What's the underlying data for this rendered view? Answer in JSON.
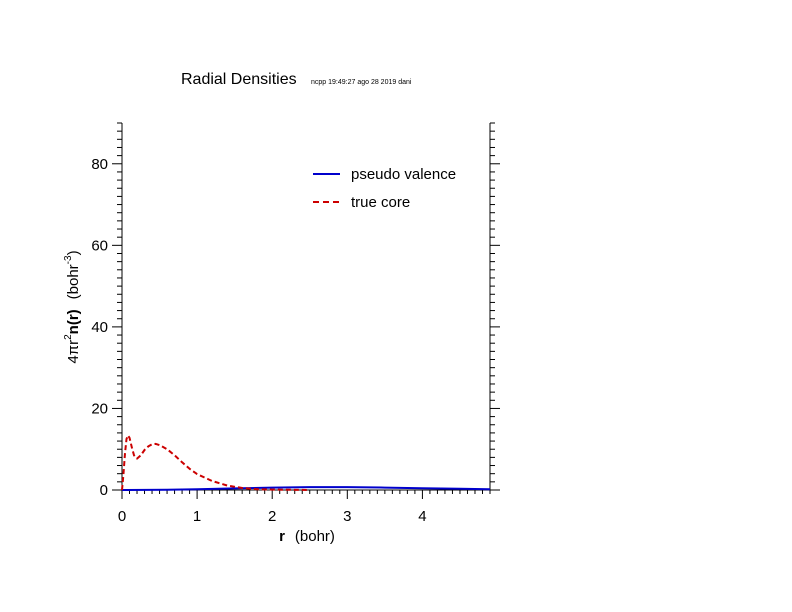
{
  "chart_data": {
    "type": "line",
    "title": "Radial Densities",
    "subtitle": "ncpp 19:49:27 ago 28 2019 dani",
    "xlabel": {
      "bold": "r",
      "units": "(bohr)"
    },
    "ylabel": {
      "prefix": "4πr",
      "prefix_sup": "2",
      "bold": "n(r)",
      "units": "(bohr",
      "units_sup": "-3",
      "units_close": ")"
    },
    "xlim": [
      0,
      4.9
    ],
    "ylim": [
      0,
      90
    ],
    "x_ticks": [
      0,
      1,
      2,
      3,
      4
    ],
    "x_tick_labels": [
      "0",
      "1",
      "2",
      "3",
      "4"
    ],
    "y_ticks": [
      0,
      20,
      40,
      60,
      80
    ],
    "y_tick_labels": [
      "0",
      "20",
      "40",
      "60",
      "80"
    ],
    "legend_position": "top-right",
    "series": [
      {
        "name": "pseudo valence",
        "color": "#0000cc",
        "style": "solid",
        "x": [
          0,
          0.6,
          1.0,
          1.5,
          2.0,
          2.5,
          3.0,
          3.5,
          4.0,
          4.5,
          4.9
        ],
        "y": [
          0.0,
          0.05,
          0.2,
          0.4,
          0.6,
          0.7,
          0.7,
          0.6,
          0.45,
          0.3,
          0.2
        ]
      },
      {
        "name": "true core",
        "color": "#cc0000",
        "style": "dashed",
        "x": [
          0,
          0.02,
          0.04,
          0.06,
          0.08,
          0.1,
          0.13,
          0.16,
          0.2,
          0.25,
          0.3,
          0.35,
          0.4,
          0.45,
          0.5,
          0.6,
          0.7,
          0.8,
          0.9,
          1.0,
          1.2,
          1.4,
          1.6,
          1.8,
          2.0,
          2.5
        ],
        "y": [
          0,
          4,
          9,
          12.5,
          13.4,
          12.8,
          10.5,
          8.5,
          7.7,
          8.5,
          9.8,
          10.7,
          11.2,
          11.3,
          11.0,
          10.0,
          8.5,
          6.8,
          5.2,
          3.9,
          2.2,
          1.1,
          0.5,
          0.2,
          0.1,
          0.0
        ]
      }
    ]
  }
}
